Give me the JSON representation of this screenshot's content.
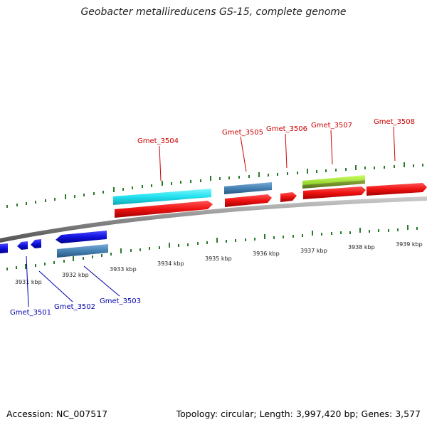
{
  "title": "Geobacter metallireducens GS-15, complete genome",
  "footer": {
    "accession": "Accession: NC_007517",
    "summary": "Topology: circular; Length: 3,997,420 bp; Genes: 3,577"
  },
  "scale_labels": [
    "3931 kbp",
    "3932 kbp",
    "3933 kbp",
    "3934 kbp",
    "3935 kbp",
    "3936 kbp",
    "3937 kbp",
    "3938 kbp",
    "3939 kbp"
  ],
  "genes": {
    "g3501": "Gmet_3501",
    "g3502": "Gmet_3502",
    "g3503": "Gmet_3503",
    "g3504": "Gmet_3504",
    "g3505": "Gmet_3505",
    "g3506": "Gmet_3506",
    "g3507": "Gmet_3507",
    "g3508": "Gmet_3508"
  },
  "colors": {
    "forward_cds": "#ee1111",
    "reverse_cds": "#1111dd",
    "cyan_feature": "#22e0ee",
    "steel_feature": "#4682b4",
    "lime_feature": "#99dd33",
    "olive_feature": "#6b8e23",
    "backbone": "#888888",
    "ticks": "#2a7a2a",
    "label_forward": "#cc0000",
    "label_reverse": "#0000aa"
  }
}
